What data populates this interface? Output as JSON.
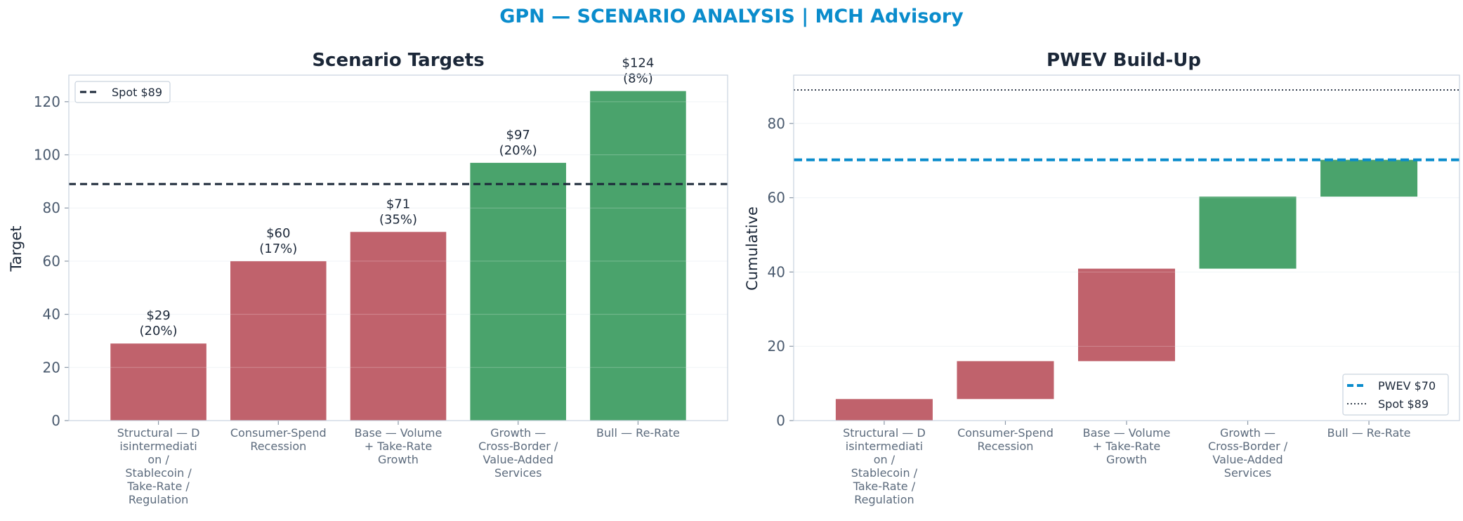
{
  "suptitle": "GPN — SCENARIO ANALYSIS | MCH Advisory",
  "colors": {
    "down": "#c0626c",
    "up": "#4aa36c",
    "spot_line": "#1b2738",
    "pwev_line": "#0a8ccc",
    "title": "#0a8ccc",
    "grid": "#edf1f5",
    "spine": "#c9d3de"
  },
  "chart_data": [
    {
      "type": "bar",
      "title": "Scenario Targets",
      "xlabel": "",
      "ylabel": "Target",
      "ylim": [
        0,
        130
      ],
      "yticks": [
        0,
        20,
        40,
        60,
        80,
        100,
        120
      ],
      "grid": true,
      "categories": [
        "Structural — D isintermediati on / Stablecoin / Take-Rate / Regulation",
        "Consumer-Spend Recession",
        "Base — Volume + Take-Rate Growth",
        "Growth — Cross-Border / Value-Added Services",
        "Bull — Re-Rate"
      ],
      "category_lines": [
        [
          "Structural — D",
          "isintermediati",
          "on /",
          "Stablecoin /",
          "Take-Rate /",
          "Regulation"
        ],
        [
          "Consumer-Spend",
          "Recession"
        ],
        [
          "Base — Volume",
          "+ Take-Rate",
          "Growth"
        ],
        [
          "Growth —",
          "Cross-Border /",
          "Value-Added",
          "Services"
        ],
        [
          "Bull — Re-Rate"
        ]
      ],
      "values": [
        29,
        60,
        71,
        97,
        124
      ],
      "bar_colors": [
        "down",
        "down",
        "down",
        "up",
        "up"
      ],
      "data_labels": [
        [
          "$29",
          "(20%)"
        ],
        [
          "$60",
          "(17%)"
        ],
        [
          "$71",
          "(35%)"
        ],
        [
          "$97",
          "(20%)"
        ],
        [
          "$124",
          "(8%)"
        ]
      ],
      "reference_lines": [
        {
          "label": "Spot $89",
          "y": 89,
          "style": "dashed",
          "color": "spot_line"
        }
      ],
      "legend": {
        "position": "top-left",
        "entries": [
          "Spot $89"
        ]
      }
    },
    {
      "type": "bar",
      "subtype": "waterfall",
      "title": "PWEV Build-Up",
      "xlabel": "",
      "ylabel": "Cumulative",
      "ylim": [
        0,
        93
      ],
      "yticks": [
        0,
        20,
        40,
        60,
        80
      ],
      "grid": true,
      "categories": [
        "Structural — D isintermediati on / Stablecoin / Take-Rate / Regulation",
        "Consumer-Spend Recession",
        "Base — Volume + Take-Rate Growth",
        "Growth — Cross-Border / Value-Added Services",
        "Bull — Re-Rate"
      ],
      "category_lines": [
        [
          "Structural — D",
          "isintermediati",
          "on /",
          "Stablecoin /",
          "Take-Rate /",
          "Regulation"
        ],
        [
          "Consumer-Spend",
          "Recession"
        ],
        [
          "Base — Volume",
          "+ Take-Rate",
          "Growth"
        ],
        [
          "Growth —",
          "Cross-Border /",
          "Value-Added",
          "Services"
        ],
        [
          "Bull — Re-Rate"
        ]
      ],
      "bars": [
        {
          "start": 0,
          "end": 5.8,
          "color": "down"
        },
        {
          "start": 5.8,
          "end": 16.0,
          "color": "down"
        },
        {
          "start": 16.0,
          "end": 40.9,
          "color": "down"
        },
        {
          "start": 40.9,
          "end": 60.3,
          "color": "up"
        },
        {
          "start": 60.3,
          "end": 70.2,
          "color": "up"
        }
      ],
      "reference_lines": [
        {
          "label": "PWEV $70",
          "y": 70.2,
          "style": "dashed-thick",
          "color": "pwev_line"
        },
        {
          "label": "Spot $89",
          "y": 89,
          "style": "dotted",
          "color": "spot_line"
        }
      ],
      "legend": {
        "position": "bottom-right",
        "entries": [
          "PWEV $70",
          "Spot $89"
        ]
      }
    }
  ]
}
